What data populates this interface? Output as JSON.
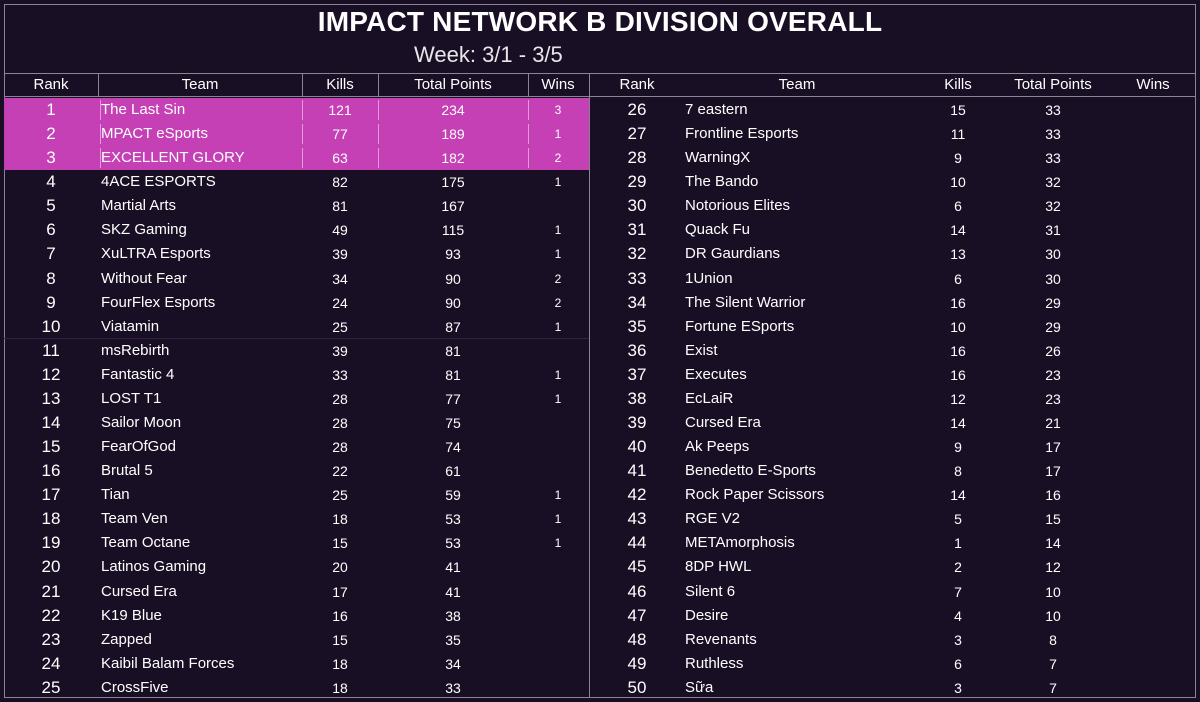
{
  "title": "IMPACT NETWORK B DIVISION OVERALL",
  "week": "Week: 3/1 - 3/5",
  "headers": {
    "rank": "Rank",
    "team": "Team",
    "kills": "Kills",
    "points": "Total Points",
    "wins": "Wins"
  },
  "colors": {
    "background": "#190f24",
    "highlight": "#c540b5"
  },
  "left_rows": [
    {
      "rank": "1",
      "team": "The Last Sin",
      "kills": "121",
      "points": "234",
      "wins": "3",
      "highlight": true
    },
    {
      "rank": "2",
      "team": "MPACT eSports",
      "kills": "77",
      "points": "189",
      "wins": "1",
      "highlight": true
    },
    {
      "rank": "3",
      "team": "EXCELLENT GLORY",
      "kills": "63",
      "points": "182",
      "wins": "2",
      "highlight": true
    },
    {
      "rank": "4",
      "team": "4ACE ESPORTS",
      "kills": "82",
      "points": "175",
      "wins": "1"
    },
    {
      "rank": "5",
      "team": "Martial Arts",
      "kills": "81",
      "points": "167",
      "wins": ""
    },
    {
      "rank": "6",
      "team": "SKZ Gaming",
      "kills": "49",
      "points": "115",
      "wins": "1"
    },
    {
      "rank": "7",
      "team": "XuLTRA Esports",
      "kills": "39",
      "points": "93",
      "wins": "1"
    },
    {
      "rank": "8",
      "team": "Without Fear",
      "kills": "34",
      "points": "90",
      "wins": "2"
    },
    {
      "rank": "9",
      "team": "FourFlex Esports",
      "kills": "24",
      "points": "90",
      "wins": "2"
    },
    {
      "rank": "10",
      "team": "Viatamin",
      "kills": "25",
      "points": "87",
      "wins": "1"
    },
    {
      "rank": "11",
      "team": "msRebirth",
      "kills": "39",
      "points": "81",
      "wins": ""
    },
    {
      "rank": "12",
      "team": "Fantastic 4",
      "kills": "33",
      "points": "81",
      "wins": "1"
    },
    {
      "rank": "13",
      "team": "LOST T1",
      "kills": "28",
      "points": "77",
      "wins": "1"
    },
    {
      "rank": "14",
      "team": "Sailor Moon",
      "kills": "28",
      "points": "75",
      "wins": ""
    },
    {
      "rank": "15",
      "team": "FearOfGod",
      "kills": "28",
      "points": "74",
      "wins": ""
    },
    {
      "rank": "16",
      "team": "Brutal 5",
      "kills": "22",
      "points": "61",
      "wins": ""
    },
    {
      "rank": "17",
      "team": "Tian",
      "kills": "25",
      "points": "59",
      "wins": "1"
    },
    {
      "rank": "18",
      "team": "Team Ven",
      "kills": "18",
      "points": "53",
      "wins": "1"
    },
    {
      "rank": "19",
      "team": "Team Octane",
      "kills": "15",
      "points": "53",
      "wins": "1"
    },
    {
      "rank": "20",
      "team": "Latinos Gaming",
      "kills": "20",
      "points": "41",
      "wins": ""
    },
    {
      "rank": "21",
      "team": "Cursed Era",
      "kills": "17",
      "points": "41",
      "wins": ""
    },
    {
      "rank": "22",
      "team": "K19 Blue",
      "kills": "16",
      "points": "38",
      "wins": ""
    },
    {
      "rank": "23",
      "team": "Zapped",
      "kills": "15",
      "points": "35",
      "wins": ""
    },
    {
      "rank": "24",
      "team": "Kaibil Balam Forces",
      "kills": "18",
      "points": "34",
      "wins": ""
    },
    {
      "rank": "25",
      "team": "CrossFive",
      "kills": "18",
      "points": "33",
      "wins": ""
    }
  ],
  "right_rows": [
    {
      "rank": "26",
      "team": "7 eastern",
      "kills": "15",
      "points": "33",
      "wins": ""
    },
    {
      "rank": "27",
      "team": "Frontline Esports",
      "kills": "11",
      "points": "33",
      "wins": ""
    },
    {
      "rank": "28",
      "team": "WarningX",
      "kills": "9",
      "points": "33",
      "wins": ""
    },
    {
      "rank": "29",
      "team": "The Bando",
      "kills": "10",
      "points": "32",
      "wins": ""
    },
    {
      "rank": "30",
      "team": "Notorious Elites",
      "kills": "6",
      "points": "32",
      "wins": ""
    },
    {
      "rank": "31",
      "team": "Quack Fu",
      "kills": "14",
      "points": "31",
      "wins": ""
    },
    {
      "rank": "32",
      "team": "DR Gaurdians",
      "kills": "13",
      "points": "30",
      "wins": ""
    },
    {
      "rank": "33",
      "team": "1Union",
      "kills": "6",
      "points": "30",
      "wins": ""
    },
    {
      "rank": "34",
      "team": "The Silent Warrior",
      "kills": "16",
      "points": "29",
      "wins": ""
    },
    {
      "rank": "35",
      "team": "Fortune ESports",
      "kills": "10",
      "points": "29",
      "wins": ""
    },
    {
      "rank": "36",
      "team": "Exist",
      "kills": "16",
      "points": "26",
      "wins": ""
    },
    {
      "rank": "37",
      "team": "Executes",
      "kills": "16",
      "points": "23",
      "wins": ""
    },
    {
      "rank": "38",
      "team": "EcLaiR",
      "kills": "12",
      "points": "23",
      "wins": ""
    },
    {
      "rank": "39",
      "team": "Cursed Era",
      "kills": "14",
      "points": "21",
      "wins": ""
    },
    {
      "rank": "40",
      "team": "Ak Peeps",
      "kills": "9",
      "points": "17",
      "wins": ""
    },
    {
      "rank": "41",
      "team": "Benedetto E-Sports",
      "kills": "8",
      "points": "17",
      "wins": ""
    },
    {
      "rank": "42",
      "team": "Rock Paper Scissors",
      "kills": "14",
      "points": "16",
      "wins": ""
    },
    {
      "rank": "43",
      "team": "RGE V2",
      "kills": "5",
      "points": "15",
      "wins": ""
    },
    {
      "rank": "44",
      "team": "METAmorphosis",
      "kills": "1",
      "points": "14",
      "wins": ""
    },
    {
      "rank": "45",
      "team": "8DP HWL",
      "kills": "2",
      "points": "12",
      "wins": ""
    },
    {
      "rank": "46",
      "team": "Silent 6",
      "kills": "7",
      "points": "10",
      "wins": ""
    },
    {
      "rank": "47",
      "team": "Desire",
      "kills": "4",
      "points": "10",
      "wins": ""
    },
    {
      "rank": "48",
      "team": "Revenants",
      "kills": "3",
      "points": "8",
      "wins": ""
    },
    {
      "rank": "49",
      "team": "Ruthless",
      "kills": "6",
      "points": "7",
      "wins": ""
    },
    {
      "rank": "50",
      "team": "Sữa",
      "kills": "3",
      "points": "7",
      "wins": ""
    }
  ]
}
